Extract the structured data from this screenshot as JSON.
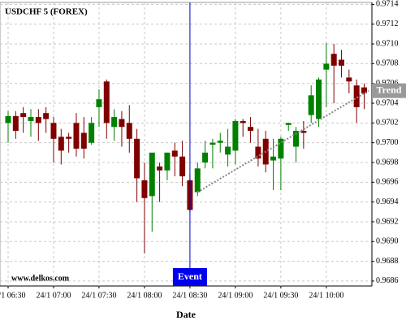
{
  "chart_data": {
    "type": "candlestick",
    "title": "USDCHF 5 (FOREX)",
    "x_label": "Date",
    "watermark": "www.delkos.com",
    "event_label": "Event",
    "trend_label": "Trend",
    "up_color": "#008000",
    "down_color": "#800000",
    "grid": true,
    "categories": [
      "24/1 06:30",
      null,
      null,
      null,
      null,
      null,
      "24/1 07:00",
      null,
      null,
      null,
      null,
      null,
      "24/1 07:30",
      null,
      null,
      null,
      null,
      null,
      "24/1 08:00",
      null,
      null,
      null,
      null,
      null,
      "24/1 08:30",
      null,
      null,
      null,
      null,
      null,
      "24/1 09:00",
      null,
      null,
      null,
      null,
      null,
      "24/1 09:30",
      null,
      null,
      null,
      null,
      null,
      "24/1 10:00",
      null,
      null,
      null,
      null,
      null
    ],
    "open": [
      0.9702,
      0.97027,
      0.9703,
      0.97022,
      0.97026,
      0.9703,
      0.9702,
      0.97006,
      0.97006,
      0.9702,
      0.9701,
      0.97,
      0.97036,
      0.97062,
      0.97016,
      0.97024,
      0.9702,
      0.97004,
      0.96962,
      0.96946,
      0.96976,
      0.96972,
      0.96992,
      0.96986,
      0.96962,
      0.9695,
      0.9698,
      0.96998,
      0.97,
      0.96988,
      0.96992,
      0.97022,
      0.97016,
      0.96996,
      0.97004,
      0.96982,
      0.96984,
      0.97018,
      0.96996,
      0.97012,
      0.97028,
      0.97024,
      0.97074,
      0.9709,
      0.97084,
      0.97066,
      0.97058,
      0.97056
    ],
    "high": [
      0.97032,
      0.97032,
      0.97036,
      0.97034,
      0.97034,
      0.97036,
      0.97026,
      0.97014,
      0.9701,
      0.9703,
      0.97026,
      0.97026,
      0.97054,
      0.97064,
      0.97034,
      0.97032,
      0.97038,
      0.97014,
      0.9698,
      0.96988,
      0.9698,
      0.9699,
      0.97,
      0.97002,
      0.96968,
      0.9698,
      0.97002,
      0.97004,
      0.9701,
      0.97014,
      0.97024,
      0.97024,
      0.97026,
      0.97014,
      0.97012,
      0.97004,
      0.97006,
      0.9702,
      0.97016,
      0.97022,
      0.97058,
      0.97066,
      0.97101,
      0.971,
      0.97094,
      0.97074,
      0.97064,
      0.9706
    ],
    "low": [
      0.97,
      0.97004,
      0.9701,
      0.97006,
      0.97002,
      0.9701,
      0.9698,
      0.96978,
      0.9699,
      0.96986,
      0.96984,
      0.96998,
      0.97016,
      0.97004,
      0.97002,
      0.96996,
      0.9699,
      0.9694,
      0.96888,
      0.9691,
      0.9694,
      0.96962,
      0.96966,
      0.96956,
      0.9693,
      0.96946,
      0.96974,
      0.96974,
      0.9699,
      0.96976,
      0.96978,
      0.97006,
      0.97,
      0.96976,
      0.9697,
      0.96952,
      0.96952,
      0.97012,
      0.9698,
      0.96994,
      0.9702,
      0.97016,
      0.97036,
      0.9704,
      0.97066,
      0.9705,
      0.9702,
      0.97034
    ],
    "close": [
      0.97027,
      0.97012,
      0.97026,
      0.97026,
      0.9702,
      0.97024,
      0.97004,
      0.96992,
      0.97004,
      0.96994,
      0.96994,
      0.9702,
      0.97044,
      0.9702,
      0.97026,
      0.97016,
      0.97004,
      0.96964,
      0.96944,
      0.9699,
      0.96972,
      0.9699,
      0.96986,
      0.96966,
      0.96932,
      0.96974,
      0.9699,
      0.97,
      0.97002,
      0.96996,
      0.97022,
      0.9702,
      0.97012,
      0.96984,
      0.96978,
      0.96986,
      0.97004,
      0.9702,
      0.97012,
      0.9701,
      0.97048,
      0.97064,
      0.9708,
      0.97078,
      0.97078,
      0.97062,
      0.97036,
      0.9705
    ],
    "ylim": [
      0.96855,
      0.97142
    ],
    "yticks": [
      0.9686,
      0.9688,
      {
        "value": 0.969,
        "label": "0.9690"
      },
      0.9692,
      0.9694,
      0.9696,
      0.9698,
      {
        "value": 0.97,
        "label": "0.9700"
      },
      0.9702,
      0.9704,
      0.9706,
      0.9708,
      {
        "value": 0.971,
        "label": "0.9710"
      },
      0.9712,
      0.9714
    ]
  }
}
